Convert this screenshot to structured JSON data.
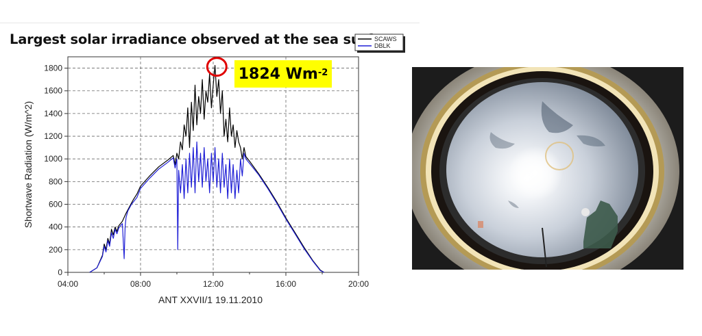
{
  "slide": {
    "title": "Largest solar irradiance observed at the sea surface"
  },
  "callout": {
    "value_text": "1824 Wm",
    "exponent": "-2"
  },
  "colors": {
    "scaws": "#000000",
    "dblk": "#1f1fd6",
    "callout_bg": "#ffff00",
    "circle": "#e00000"
  },
  "chart_data": {
    "type": "line",
    "title": "",
    "xlabel": "ANT XXVII/1 19.11.2010",
    "ylabel": "Shortwave Radiation (W/m^2)",
    "x_unit": "hours",
    "xlim": [
      4,
      20
    ],
    "ylim": [
      0,
      1900
    ],
    "x_ticks": [
      "04:00",
      "08:00",
      "12:00",
      "16:00",
      "20:00"
    ],
    "y_ticks": [
      0,
      200,
      400,
      600,
      800,
      1000,
      1200,
      1400,
      1600,
      1800
    ],
    "grid": true,
    "legend": "top-right",
    "annotation": "1824 Wm-2",
    "series": [
      {
        "name": "SCAWS",
        "x": [
          5.2,
          5.6,
          5.9,
          6.0,
          6.1,
          6.2,
          6.3,
          6.4,
          6.5,
          6.6,
          6.7,
          6.8,
          7.0,
          7.2,
          7.4,
          7.6,
          7.8,
          8.0,
          8.5,
          9.0,
          9.5,
          9.8,
          9.9,
          10.0,
          10.1,
          10.2,
          10.3,
          10.4,
          10.5,
          10.6,
          10.7,
          10.8,
          10.9,
          11.0,
          11.1,
          11.2,
          11.3,
          11.4,
          11.5,
          11.6,
          11.7,
          11.8,
          11.9,
          12.0,
          12.1,
          12.2,
          12.3,
          12.4,
          12.5,
          12.6,
          12.7,
          12.8,
          12.9,
          13.0,
          13.1,
          13.2,
          13.3,
          13.4,
          13.5,
          13.6,
          13.7,
          13.8,
          14.0,
          14.5,
          15.0,
          15.5,
          16.0,
          16.5,
          17.0,
          17.5,
          17.9,
          18.1
        ],
        "y": [
          0,
          40,
          150,
          250,
          200,
          300,
          250,
          380,
          330,
          400,
          360,
          410,
          450,
          520,
          580,
          640,
          690,
          760,
          850,
          930,
          990,
          1030,
          950,
          1050,
          1000,
          1150,
          1080,
          1300,
          1200,
          1450,
          1100,
          1500,
          1250,
          1650,
          1300,
          1550,
          1400,
          1700,
          1350,
          1600,
          1500,
          1750,
          1450,
          1650,
          1824,
          1550,
          1700,
          1400,
          1600,
          1200,
          1350,
          1150,
          1450,
          1200,
          1300,
          1100,
          1250,
          1150,
          1100,
          1000,
          1100,
          1020,
          980,
          870,
          750,
          620,
          480,
          350,
          220,
          100,
          20,
          0
        ]
      },
      {
        "name": "DBLK",
        "x": [
          5.2,
          5.6,
          5.9,
          6.0,
          6.1,
          6.2,
          6.3,
          6.4,
          6.5,
          6.6,
          6.7,
          6.8,
          7.0,
          7.1,
          7.15,
          7.2,
          7.3,
          7.5,
          7.8,
          8.0,
          8.5,
          9.0,
          9.5,
          9.8,
          9.9,
          10.0,
          10.05,
          10.1,
          10.2,
          10.3,
          10.4,
          10.5,
          10.6,
          10.7,
          10.8,
          10.9,
          11.0,
          11.1,
          11.2,
          11.3,
          11.4,
          11.5,
          11.6,
          11.7,
          11.8,
          11.9,
          12.0,
          12.1,
          12.2,
          12.3,
          12.4,
          12.5,
          12.6,
          12.7,
          12.8,
          12.9,
          13.0,
          13.1,
          13.2,
          13.3,
          13.4,
          13.5,
          13.6,
          13.7,
          13.8,
          14.0,
          14.5,
          15.0,
          15.5,
          16.0,
          16.5,
          17.0,
          17.5,
          17.9,
          18.1
        ],
        "y": [
          0,
          40,
          140,
          230,
          180,
          280,
          230,
          350,
          300,
          380,
          340,
          390,
          430,
          120,
          400,
          480,
          540,
          600,
          660,
          740,
          830,
          910,
          970,
          1010,
          920,
          1000,
          200,
          900,
          700,
          950,
          650,
          1000,
          700,
          1050,
          750,
          1100,
          700,
          1150,
          800,
          1050,
          750,
          1100,
          800,
          1000,
          700,
          1050,
          800,
          1100,
          750,
          1000,
          700,
          1050,
          750,
          950,
          650,
          1000,
          700,
          950,
          650,
          900,
          700,
          1000,
          850,
          1050,
          1000,
          960,
          860,
          740,
          610,
          470,
          340,
          210,
          95,
          15,
          0
        ]
      }
    ]
  },
  "photo": {
    "description_icon": "fisheye-sky-photo"
  }
}
